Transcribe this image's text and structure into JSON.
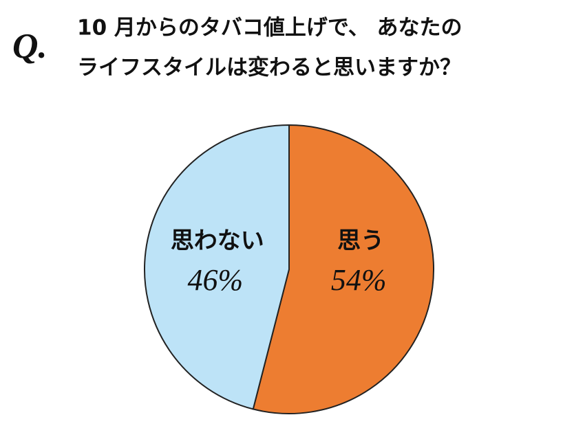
{
  "chart_data": {
    "type": "pie",
    "title_prefix": "Q.",
    "title": [
      "10 月からのタバコ値上げで、 あなたの",
      "ライフスタイルは変わると思いますか？"
    ],
    "categories": [
      "思う",
      "思わない"
    ],
    "values": [
      54,
      46
    ],
    "value_labels": [
      "54%",
      "46%"
    ],
    "colors": [
      "#ed7d31",
      "#bde3f7"
    ]
  }
}
